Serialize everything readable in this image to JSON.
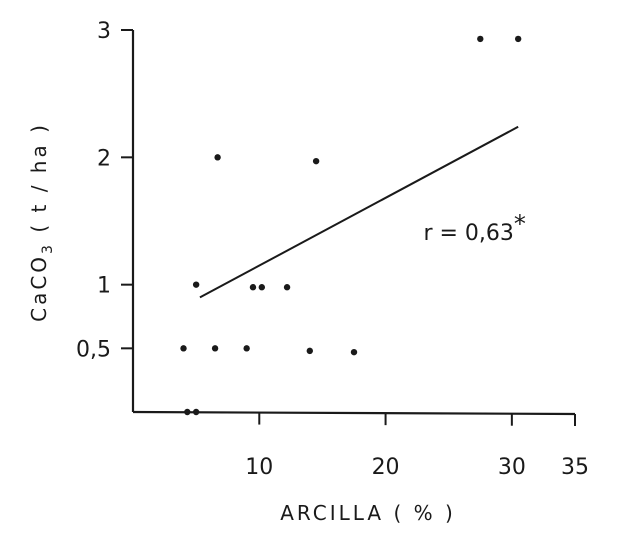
{
  "chart_data": {
    "type": "scatter",
    "xlabel": "ARCILLA ( % )",
    "ylabel_parts": {
      "a": "CaCO",
      "sub": "3",
      "b": " ( t  / ha )"
    },
    "x_ticks": [
      {
        "value": 10,
        "label": "10"
      },
      {
        "value": 20,
        "label": "20"
      },
      {
        "value": 30,
        "label": "30"
      },
      {
        "value": 35,
        "label": "35"
      }
    ],
    "y_ticks": [
      {
        "value": 0.5,
        "label": "0,5"
      },
      {
        "value": 1,
        "label": "1"
      },
      {
        "value": 2,
        "label": "2"
      },
      {
        "value": 3,
        "label": "3"
      }
    ],
    "xlim": [
      0,
      35
    ],
    "ylim": [
      0,
      3
    ],
    "points": [
      {
        "x": 4.0,
        "y": 0.5
      },
      {
        "x": 4.3,
        "y": 0.0
      },
      {
        "x": 5.0,
        "y": 0.0
      },
      {
        "x": 5.0,
        "y": 1.0
      },
      {
        "x": 6.5,
        "y": 0.5
      },
      {
        "x": 6.7,
        "y": 2.0
      },
      {
        "x": 9.0,
        "y": 0.5
      },
      {
        "x": 9.5,
        "y": 0.98
      },
      {
        "x": 10.2,
        "y": 0.98
      },
      {
        "x": 12.2,
        "y": 0.98
      },
      {
        "x": 14.0,
        "y": 0.48
      },
      {
        "x": 14.5,
        "y": 1.97
      },
      {
        "x": 17.5,
        "y": 0.47
      },
      {
        "x": 27.5,
        "y": 2.93
      },
      {
        "x": 30.5,
        "y": 2.93
      }
    ],
    "regression_line": [
      {
        "x": 5.3,
        "y": 0.9
      },
      {
        "x": 30.5,
        "y": 2.24
      }
    ],
    "annotation": "r = 0,63",
    "annotation_mark": "*",
    "annotation_position": {
      "x": 23,
      "y": 1.35
    },
    "grid": false,
    "ink_color": "#1a1a1a"
  }
}
